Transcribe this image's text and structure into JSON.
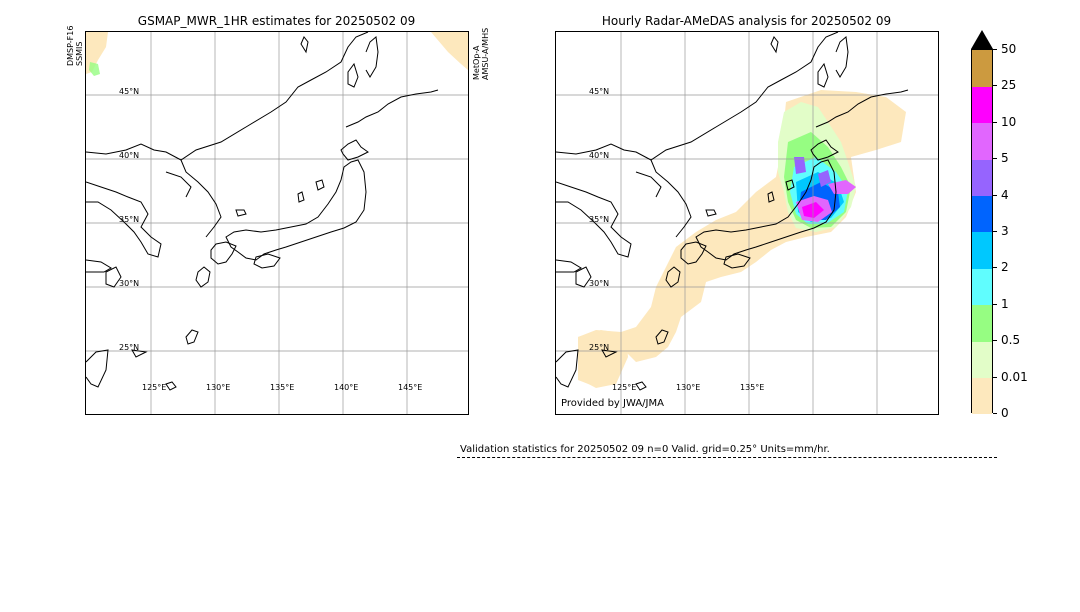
{
  "left_panel": {
    "title": "GSMAP_MWR_1HR estimates for 20250502 09",
    "side_label_left": [
      "DMSP-F16",
      "SSMIS"
    ],
    "side_label_right": [
      "MetOp-A",
      "AMSU-A/MHS"
    ],
    "lat_labels": [
      "45°N",
      "40°N",
      "35°N",
      "30°N",
      "25°N"
    ],
    "lon_labels": [
      "125°E",
      "130°E",
      "135°E",
      "140°E",
      "145°E"
    ]
  },
  "right_panel": {
    "title": "Hourly Radar-AMeDAS analysis for 20250502 09",
    "lat_labels": [
      "45°N",
      "40°N",
      "35°N",
      "30°N",
      "25°N"
    ],
    "lon_labels": [
      "125°E",
      "130°E",
      "135°E"
    ],
    "credit": "Provided by JWA/JMA"
  },
  "colorbar": {
    "ticks": [
      "50",
      "25",
      "10",
      "5",
      "4",
      "3",
      "2",
      "1",
      "0.5",
      "0.01",
      "0"
    ],
    "colors": [
      "#fde8bd",
      "#e2fdc8",
      "#96fd82",
      "#60fdfe",
      "#00c8fe",
      "#0064fe",
      "#9664fe",
      "#e166fe",
      "#fe00fe",
      "#cc9a3f"
    ],
    "extend_color": "#000000"
  },
  "stats": {
    "text": "Validation statistics for 20250502 09  n=0 Valid. grid=0.25° Units=mm/hr."
  }
}
